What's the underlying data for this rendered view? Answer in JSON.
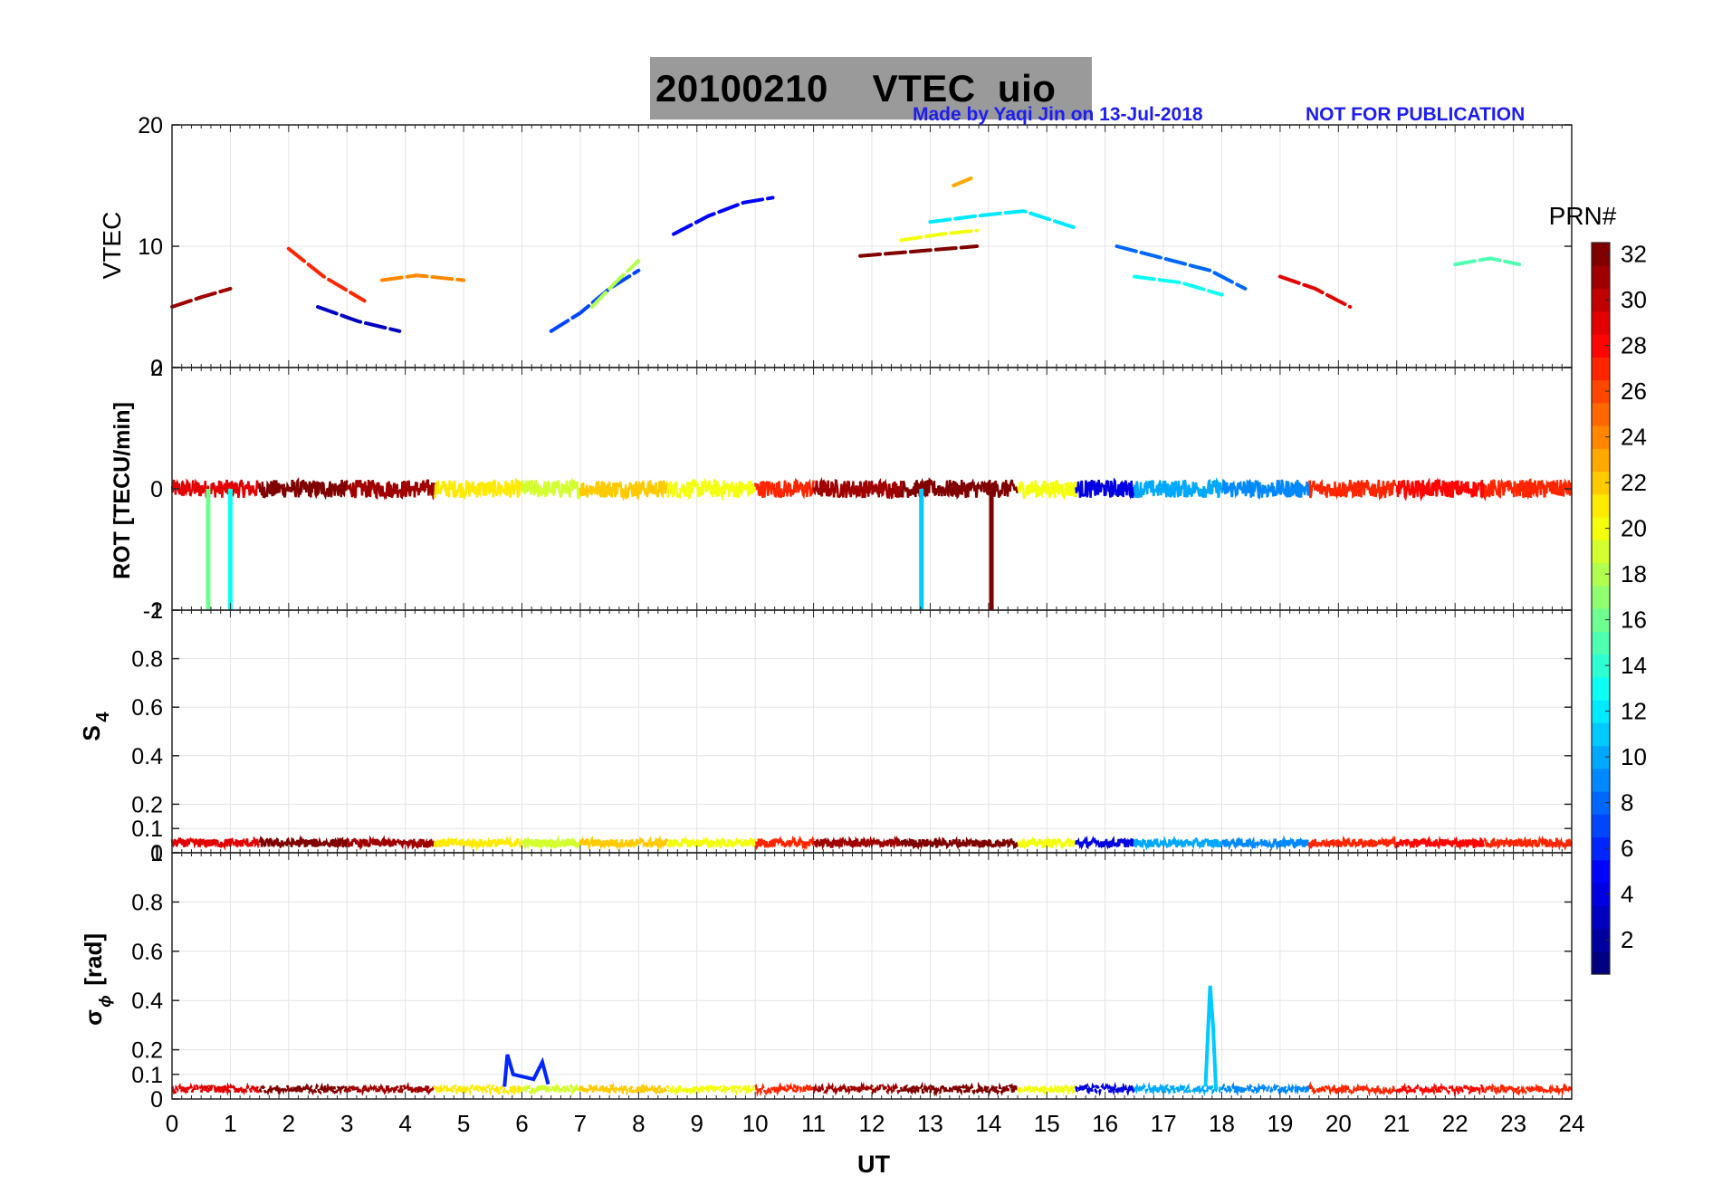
{
  "title": {
    "date": "20100210",
    "product": "VTEC  uio"
  },
  "credit": {
    "author": "Made by Yaqi Jin on 13-Jul-2018",
    "notice": "NOT FOR PUBLICATION"
  },
  "colors": {
    "title_bg": "#9a9a9a",
    "credit_text": "#1d1df0",
    "colormap": "jet"
  },
  "chart_data": [
    {
      "type": "line",
      "panel": "vtec",
      "ylabel": "VTEC",
      "xlim": [
        0,
        24
      ],
      "ylim": [
        0,
        20
      ],
      "yticks": [
        0,
        10,
        20
      ],
      "series": [
        {
          "name": "PRN 5",
          "prn": 5,
          "x": [
            8.6,
            9.2,
            9.8,
            10.3
          ],
          "y": [
            11,
            12.5,
            13.6,
            14
          ]
        },
        {
          "name": "PRN 7",
          "prn": 7,
          "x": [
            6.5,
            7.0,
            7.5,
            8.0
          ],
          "y": [
            3,
            4.5,
            6.5,
            8
          ]
        },
        {
          "name": "PRN 8",
          "prn": 8,
          "x": [
            16.2,
            17.0,
            17.8,
            18.4
          ],
          "y": [
            10,
            9,
            8,
            6.5
          ]
        },
        {
          "name": "PRN 3",
          "prn": 3,
          "x": [
            2.5,
            3.2,
            3.9
          ],
          "y": [
            5,
            3.8,
            3
          ]
        },
        {
          "name": "PRN 12",
          "prn": 12,
          "x": [
            13.0,
            13.8,
            14.6,
            15.5
          ],
          "y": [
            12,
            12.5,
            12.9,
            11.5
          ]
        },
        {
          "name": "PRN 13",
          "prn": 13,
          "x": [
            16.5,
            17.3,
            18.0
          ],
          "y": [
            7.5,
            7,
            6
          ]
        },
        {
          "name": "PRN 15",
          "prn": 15,
          "x": [
            22.0,
            22.6,
            23.1
          ],
          "y": [
            8.5,
            9,
            8.5
          ]
        },
        {
          "name": "PRN 18",
          "prn": 18,
          "x": [
            7.2,
            7.6,
            8.0
          ],
          "y": [
            5,
            7,
            8.8
          ]
        },
        {
          "name": "PRN 20",
          "prn": 20,
          "x": [
            12.5,
            13.2,
            13.8
          ],
          "y": [
            10.5,
            11,
            11.3
          ]
        },
        {
          "name": "PRN 23",
          "prn": 23,
          "x": [
            13.4,
            13.7
          ],
          "y": [
            15,
            15.6
          ]
        },
        {
          "name": "PRN 24",
          "prn": 24,
          "x": [
            3.6,
            4.2,
            5.0
          ],
          "y": [
            7.2,
            7.6,
            7.2
          ]
        },
        {
          "name": "PRN 27",
          "prn": 27,
          "x": [
            2.0,
            2.6,
            3.3
          ],
          "y": [
            9.8,
            7.5,
            5.5
          ]
        },
        {
          "name": "PRN 29",
          "prn": 29,
          "x": [
            19.0,
            19.6,
            20.2
          ],
          "y": [
            7.5,
            6.5,
            5
          ]
        },
        {
          "name": "PRN 31",
          "prn": 31,
          "x": [
            0,
            0.5,
            1.0
          ],
          "y": [
            5,
            5.8,
            6.5
          ]
        },
        {
          "name": "PRN 32",
          "prn": 32,
          "x": [
            11.8,
            12.8,
            13.8
          ],
          "y": [
            9.2,
            9.6,
            10
          ]
        }
      ]
    },
    {
      "type": "line",
      "panel": "rot",
      "ylabel": "ROT [TECU/min]",
      "xlim": [
        0,
        24
      ],
      "ylim": [
        -2,
        2
      ],
      "yticks": [
        -2,
        0,
        2
      ],
      "spikes": [
        {
          "prn": 16,
          "x": 0.62,
          "y": -2
        },
        {
          "prn": 13,
          "x": 1.0,
          "y": -2
        },
        {
          "prn": 11,
          "x": 12.85,
          "y": -2
        },
        {
          "prn": 32,
          "x": 14.05,
          "y": -2
        }
      ],
      "noise_band_amplitude": 0.15
    },
    {
      "type": "line",
      "panel": "s4",
      "ylabel": "S4",
      "xlim": [
        0,
        24
      ],
      "ylim": [
        0,
        1
      ],
      "yticks": [
        0,
        0.1,
        0.2,
        0.4,
        0.6,
        0.8,
        1
      ],
      "baseline": 0.04,
      "noise_band_amplitude": 0.02
    },
    {
      "type": "line",
      "panel": "sigma_phi",
      "ylabel": "σϕ [rad]",
      "xlim": [
        0,
        24
      ],
      "ylim": [
        0,
        1
      ],
      "yticks": [
        0,
        0.1,
        0.2,
        0.4,
        0.6,
        0.8,
        1
      ],
      "baseline": 0.04,
      "features": [
        {
          "prn": 6,
          "x": [
            5.7,
            5.75,
            5.85,
            6.2,
            6.35,
            6.45
          ],
          "y": [
            0.05,
            0.18,
            0.1,
            0.08,
            0.15,
            0.06
          ]
        },
        {
          "prn": 11,
          "x": [
            17.72,
            17.8,
            17.85,
            17.9
          ],
          "y": [
            0.05,
            0.46,
            0.3,
            0.04
          ]
        }
      ]
    }
  ],
  "axes": {
    "xlabel": "UT",
    "xticks": [
      "0",
      "1",
      "2",
      "3",
      "4",
      "5",
      "6",
      "7",
      "8",
      "9",
      "10",
      "11",
      "12",
      "13",
      "14",
      "15",
      "16",
      "17",
      "18",
      "19",
      "20",
      "21",
      "22",
      "23",
      "24"
    ],
    "vtec_ylabel": "VTEC",
    "rot_ylabel": "ROT [TECU/min]",
    "s4_ylabel_main": "S",
    "s4_ylabel_sub": "4",
    "sigma_ylabel_main": "σ",
    "sigma_ylabel_sub": "ϕ",
    "sigma_ylabel_unit": " [rad]"
  },
  "colorbar": {
    "label": "PRN#",
    "ticks": [
      "2",
      "4",
      "6",
      "8",
      "10",
      "12",
      "14",
      "16",
      "18",
      "20",
      "22",
      "24",
      "26",
      "28",
      "30",
      "32"
    ],
    "range": [
      1,
      32
    ]
  }
}
